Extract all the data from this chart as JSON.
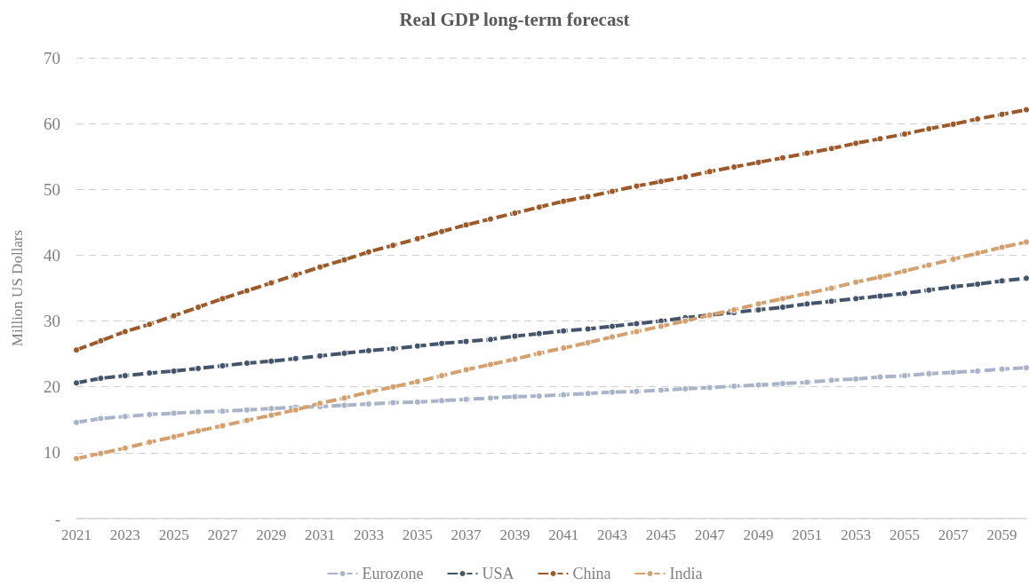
{
  "chart_data": {
    "type": "line",
    "title": "Real GDP long-term forecast",
    "ylabel": "Million US Dollars",
    "categories": [
      "2021",
      null,
      "2023",
      null,
      "2025",
      null,
      "2027",
      null,
      "2029",
      null,
      "2031",
      null,
      "2033",
      null,
      "2035",
      null,
      "2037",
      null,
      "2039",
      null,
      "2041",
      null,
      "2043",
      null,
      "2045",
      null,
      "2047",
      null,
      "2049",
      null,
      "2051",
      null,
      "2053",
      null,
      "2055",
      null,
      "2057",
      null,
      "2059",
      null
    ],
    "series": [
      {
        "name": "Eurozone",
        "color": "#a9b4c8",
        "values": [
          14.6,
          15.2,
          15.5,
          15.8,
          16.0,
          16.2,
          16.3,
          16.5,
          16.7,
          16.9,
          17.0,
          17.2,
          17.4,
          17.6,
          17.7,
          17.9,
          18.1,
          18.3,
          18.5,
          18.6,
          18.8,
          19.0,
          19.2,
          19.3,
          19.5,
          19.7,
          19.9,
          20.1,
          20.3,
          20.5,
          20.7,
          21.0,
          21.2,
          21.5,
          21.7,
          22.0,
          22.2,
          22.4,
          22.7,
          22.9
        ]
      },
      {
        "name": "USA",
        "color": "#44546a",
        "values": [
          20.6,
          21.3,
          21.7,
          22.1,
          22.4,
          22.8,
          23.2,
          23.6,
          23.9,
          24.3,
          24.7,
          25.1,
          25.5,
          25.8,
          26.2,
          26.6,
          26.9,
          27.2,
          27.7,
          28.1,
          28.5,
          28.8,
          29.2,
          29.6,
          30.0,
          30.5,
          30.9,
          31.3,
          31.7,
          32.1,
          32.6,
          33.0,
          33.4,
          33.8,
          34.2,
          34.7,
          35.2,
          35.6,
          36.1,
          36.5
        ]
      },
      {
        "name": "China",
        "color": "#9c5a2a",
        "values": [
          25.6,
          27.0,
          28.4,
          29.5,
          30.8,
          32.1,
          33.4,
          34.6,
          35.8,
          37.0,
          38.2,
          39.3,
          40.5,
          41.5,
          42.5,
          43.6,
          44.6,
          45.5,
          46.4,
          47.3,
          48.2,
          48.9,
          49.7,
          50.5,
          51.2,
          51.9,
          52.7,
          53.4,
          54.1,
          54.8,
          55.5,
          56.2,
          57.0,
          57.7,
          58.4,
          59.2,
          59.9,
          60.7,
          61.4,
          62.1
        ]
      },
      {
        "name": "India",
        "color": "#d4a06e",
        "values": [
          9.1,
          9.9,
          10.7,
          11.6,
          12.4,
          13.3,
          14.1,
          14.9,
          15.7,
          16.5,
          17.5,
          18.3,
          19.2,
          20.0,
          20.8,
          21.7,
          22.6,
          23.4,
          24.2,
          25.1,
          25.9,
          26.7,
          27.6,
          28.4,
          29.2,
          30.0,
          30.9,
          31.7,
          32.6,
          33.4,
          34.2,
          35.0,
          35.9,
          36.7,
          37.6,
          38.5,
          39.4,
          40.3,
          41.2,
          42.0
        ]
      }
    ],
    "ylim": [
      0,
      70
    ],
    "yticks": [
      {
        "value": 0,
        "label": "-"
      },
      10,
      20,
      30,
      40,
      50,
      60,
      70
    ],
    "grid": "y",
    "legend": "bottom",
    "marker": "circle",
    "line_style": "dashed"
  }
}
